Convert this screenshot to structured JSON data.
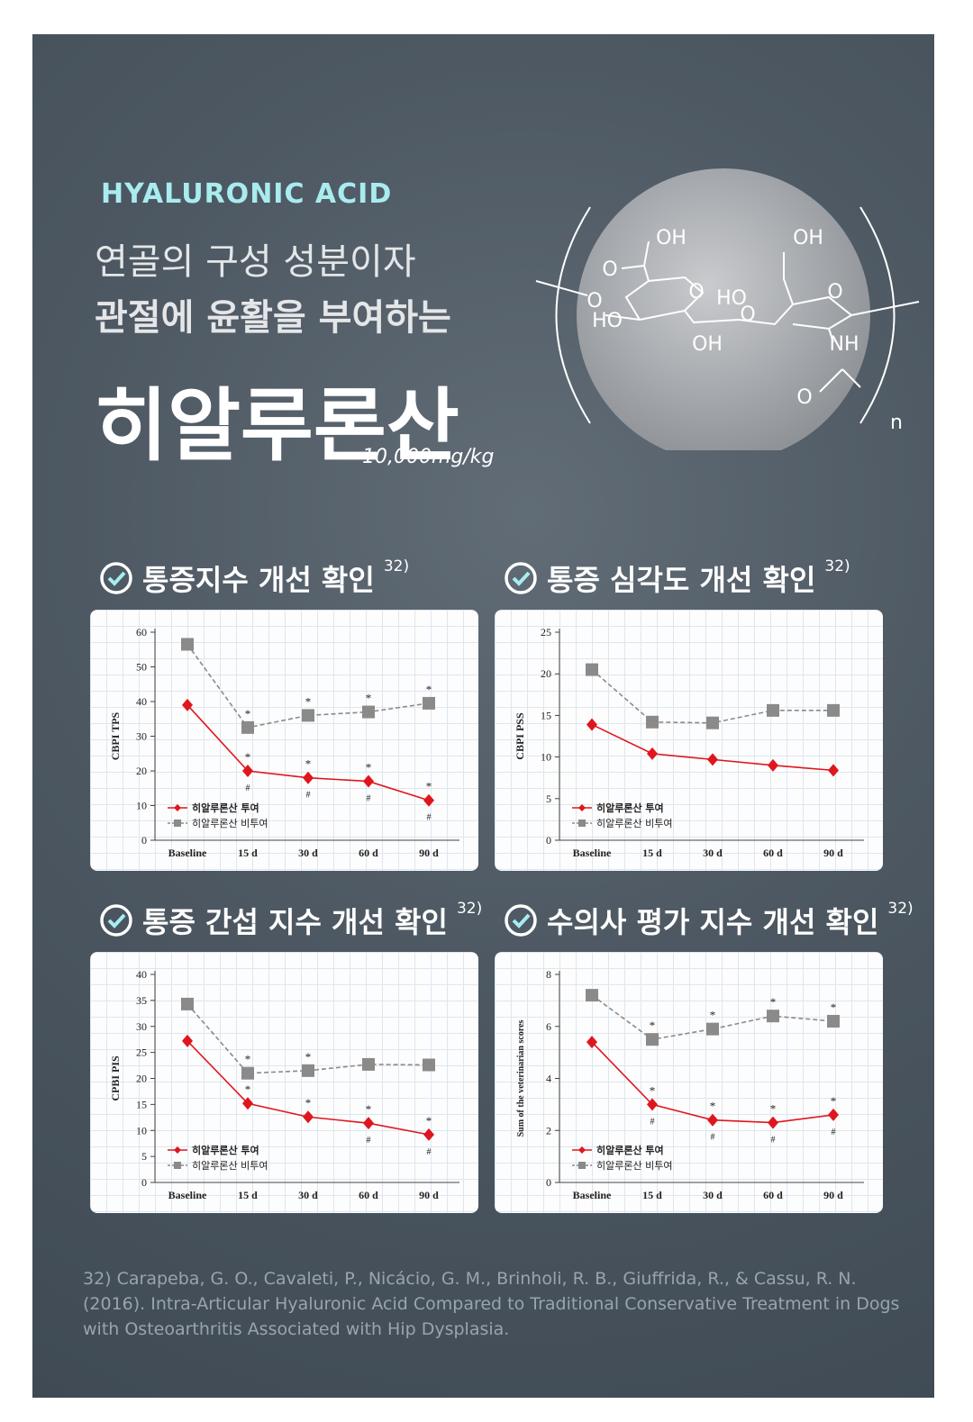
{
  "header": {
    "eyebrow": "HYALURONIC ACID",
    "line1": "연골의 구성 성분이자",
    "line2": "관절에 윤활을 부여하는",
    "title": "히알루론산",
    "dose": "10,000mg/kg"
  },
  "molecule": {
    "labels": [
      "OH",
      "O",
      "O",
      "O",
      "HO",
      "HO",
      "O",
      "OH",
      "OH",
      "O",
      "NH",
      "O",
      "n"
    ]
  },
  "chart_data": [
    {
      "type": "line",
      "title": "통증지수 개선 확인",
      "ref": "32)",
      "y_label": "CBPI TPS",
      "categories": [
        "Baseline",
        "15 d",
        "30 d",
        "60 d",
        "90 d"
      ],
      "ylim": [
        0,
        60
      ],
      "yticks": [
        0,
        10,
        20,
        30,
        40,
        50,
        60
      ],
      "series": [
        {
          "name": "히알루론산 투여",
          "color": "#e0161e",
          "marker": "diamond",
          "dashed": false,
          "values": [
            39,
            20,
            18,
            17,
            11.5
          ],
          "star_labels": [
            null,
            "*",
            "*",
            "*",
            "*"
          ],
          "hash_labels": [
            null,
            "#",
            "#",
            "#",
            "#"
          ]
        },
        {
          "name": "히알루론산 비투여",
          "color": "#8a8a8a",
          "marker": "square",
          "dashed": true,
          "values": [
            56.5,
            32.5,
            36,
            37,
            39.5
          ],
          "star_labels": [
            null,
            "*",
            "*",
            "*",
            "*"
          ]
        }
      ]
    },
    {
      "type": "line",
      "title": "통증 심각도 개선 확인",
      "ref": "32)",
      "y_label": "CBPI PSS",
      "categories": [
        "Baseline",
        "15 d",
        "30 d",
        "60 d",
        "90 d"
      ],
      "ylim": [
        0,
        25
      ],
      "yticks": [
        0,
        5,
        10,
        15,
        20,
        25
      ],
      "series": [
        {
          "name": "히알루론산 투여",
          "color": "#e0161e",
          "marker": "diamond",
          "dashed": false,
          "values": [
            13.9,
            10.4,
            9.7,
            9,
            8.4
          ]
        },
        {
          "name": "히알루론산 비투여",
          "color": "#8a8a8a",
          "marker": "square",
          "dashed": true,
          "values": [
            20.5,
            14.2,
            14.1,
            15.6,
            15.6
          ]
        }
      ]
    },
    {
      "type": "line",
      "title": "통증 간섭 지수 개선 확인",
      "ref": "32)",
      "y_label": "CPBI PIS",
      "categories": [
        "Baseline",
        "15 d",
        "30 d",
        "60 d",
        "90 d"
      ],
      "ylim": [
        0,
        40
      ],
      "yticks": [
        0,
        5,
        10,
        15,
        20,
        25,
        30,
        35,
        40
      ],
      "series": [
        {
          "name": "히알루론산 투여",
          "color": "#e0161e",
          "marker": "diamond",
          "dashed": false,
          "values": [
            27.2,
            15.2,
            12.6,
            11.4,
            9.2
          ],
          "star_labels": [
            null,
            "*",
            "*",
            "*",
            "*"
          ],
          "hash_labels": [
            null,
            null,
            null,
            "#",
            "#"
          ]
        },
        {
          "name": "히알루론산 비투여",
          "color": "#8a8a8a",
          "marker": "square",
          "dashed": true,
          "values": [
            34.3,
            21,
            21.5,
            22.7,
            22.6
          ],
          "star_labels": [
            null,
            "*",
            "*",
            null,
            null
          ]
        }
      ]
    },
    {
      "type": "line",
      "title": "수의사 평가 지수 개선 확인",
      "ref": "32)",
      "y_label": "Sum of the veterinarian scores",
      "categories": [
        "Baseline",
        "15 d",
        "30 d",
        "60 d",
        "90 d"
      ],
      "ylim": [
        0,
        8
      ],
      "yticks": [
        0,
        2,
        4,
        6,
        8
      ],
      "series": [
        {
          "name": "히알루론산 투여",
          "color": "#e0161e",
          "marker": "diamond",
          "dashed": false,
          "values": [
            5.4,
            3,
            2.4,
            2.3,
            2.6
          ],
          "star_labels": [
            null,
            "*",
            "*",
            "*",
            "*"
          ],
          "hash_labels": [
            null,
            "#",
            "#",
            "#",
            "#"
          ]
        },
        {
          "name": "히알루론산 비투여",
          "color": "#8a8a8a",
          "marker": "square",
          "dashed": true,
          "values": [
            7.2,
            5.5,
            5.9,
            6.4,
            6.2
          ],
          "star_labels": [
            null,
            "*",
            "*",
            "*",
            "*"
          ]
        }
      ]
    }
  ],
  "footer": {
    "citation": "32) Carapeba, G. O., Cavaleti, P., Nicácio, G. M., Brinholi, R. B., Giuffrida, R., & Cassu, R. N. (2016). Intra-Articular Hyaluronic Acid Compared to Traditional Conservative Treatment in Dogs with Osteoarthritis Associated with Hip Dysplasia."
  }
}
